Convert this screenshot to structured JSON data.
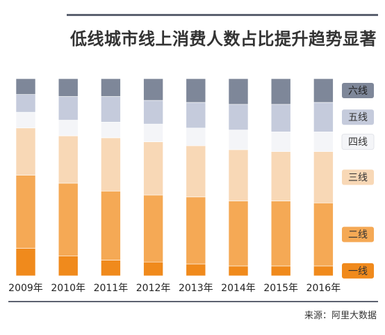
{
  "title": "低线城市线上消费人数占比提升趋势显著",
  "source": "来源：阿里大数据",
  "chart_data": {
    "type": "bar",
    "stacked": true,
    "normalized": true,
    "title": "低线城市线上消费人数占比提升趋势显著",
    "categories": [
      "2009年",
      "2010年",
      "2011年",
      "2012年",
      "2013年",
      "2014年",
      "2015年",
      "2016年"
    ],
    "series": [
      {
        "name": "一线",
        "color": "#f08a1c",
        "values": [
          14,
          10,
          8,
          7,
          6,
          5,
          5,
          5
        ]
      },
      {
        "name": "二线",
        "color": "#f5a955",
        "values": [
          37,
          37,
          35,
          34,
          34,
          33,
          33,
          32
        ]
      },
      {
        "name": "三线",
        "color": "#f8d8b6",
        "values": [
          24,
          24,
          27,
          27,
          26,
          26,
          25,
          26
        ]
      },
      {
        "name": "四线",
        "color": "#f4f5f8",
        "values": [
          8,
          8,
          8,
          9,
          9,
          10,
          10,
          10
        ]
      },
      {
        "name": "五线",
        "color": "#c5cbdc",
        "values": [
          9,
          12,
          13,
          12,
          13,
          13,
          14,
          15
        ]
      },
      {
        "name": "六线",
        "color": "#7e8799",
        "values": [
          8,
          9,
          9,
          11,
          12,
          13,
          13,
          12
        ]
      }
    ],
    "ylim": [
      0,
      100
    ],
    "legend": "right",
    "legend_order": [
      "六线",
      "五线",
      "四线",
      "三线",
      "二线",
      "一线"
    ],
    "grid": false
  }
}
